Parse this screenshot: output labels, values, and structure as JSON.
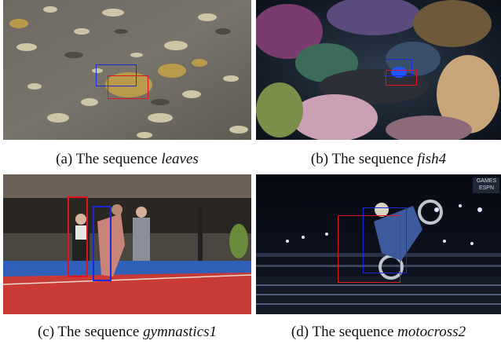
{
  "figure": {
    "panels": [
      {
        "id": "a",
        "label": "(a) The sequence ",
        "sequence": "leaves"
      },
      {
        "id": "b",
        "label": "(b) The sequence ",
        "sequence": "fish4"
      },
      {
        "id": "c",
        "label": "(c) The sequence ",
        "sequence": "gymnastics1"
      },
      {
        "id": "d",
        "label": "(d) The sequence ",
        "sequence": "motocross2"
      }
    ],
    "box_colors": {
      "red": "#e0141e",
      "blue": "#1a2ad8"
    },
    "overlay_text": {
      "games_logo_top": "GAMES",
      "games_logo_bottom": "ESPN"
    }
  }
}
